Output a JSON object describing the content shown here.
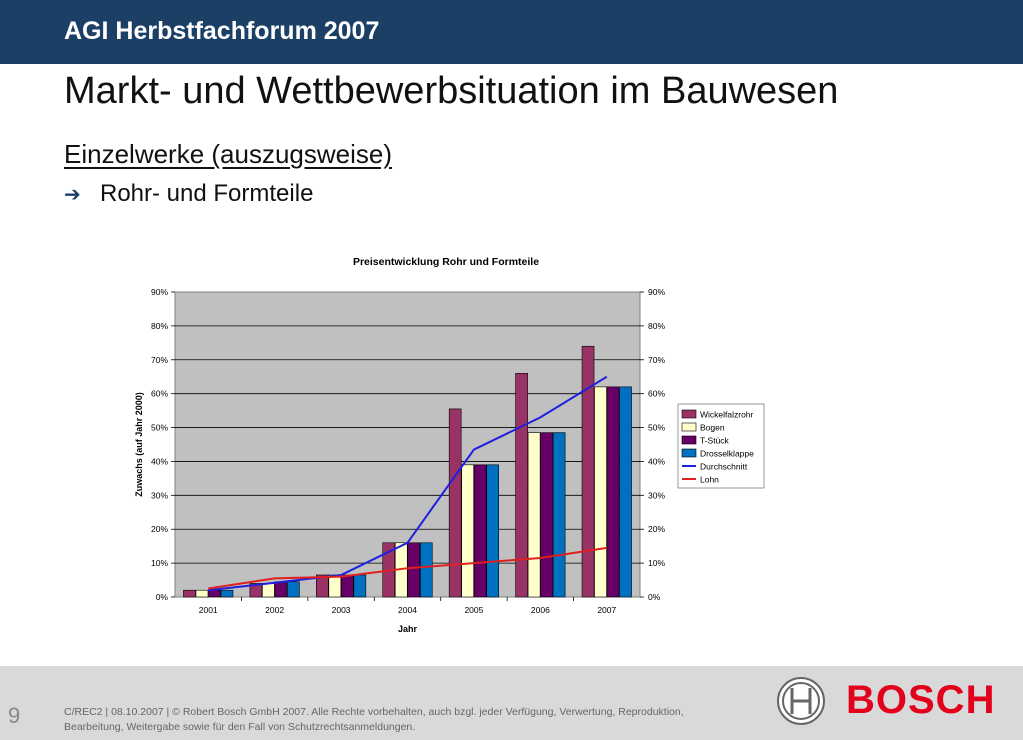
{
  "header": {
    "title": "AGI Herbstfachforum 2007"
  },
  "main": {
    "title": "Markt- und Wettbewerbsituation im Bauwesen",
    "subtitle": "Einzelwerke (auszugsweise)",
    "bullet": "Rohr- und Formteile"
  },
  "chart_data": {
    "type": "bar",
    "title": "Preisentwicklung  Rohr und Formteile",
    "xlabel": "Jahr",
    "ylabel": "Zuwachs (auf Jahr 2000)",
    "ylim": [
      0,
      90
    ],
    "y_ticks": [
      "0%",
      "10%",
      "20%",
      "30%",
      "40%",
      "50%",
      "60%",
      "70%",
      "80%",
      "90%"
    ],
    "y2_ticks": [
      "0%",
      "10%",
      "20%",
      "30%",
      "40%",
      "50%",
      "60%",
      "70%",
      "80%",
      "90%"
    ],
    "categories": [
      "2001",
      "2002",
      "2003",
      "2004",
      "2005",
      "2006",
      "2007"
    ],
    "grid": true,
    "legend_position": "right",
    "series": [
      {
        "name": "Wickelfalzrohr",
        "kind": "bar",
        "color": "#993366",
        "values": [
          2,
          4,
          6.5,
          16,
          55.5,
          66,
          74
        ]
      },
      {
        "name": "Bogen",
        "kind": "bar",
        "color": "#ffffcc",
        "values": [
          2,
          4,
          6.5,
          16,
          39,
          48.5,
          62
        ]
      },
      {
        "name": "T-Stück",
        "kind": "bar",
        "color": "#660066",
        "values": [
          2,
          4.5,
          6.5,
          16,
          39,
          48.5,
          62
        ]
      },
      {
        "name": "Drosselklappe",
        "kind": "bar",
        "color": "#0070c0",
        "values": [
          2,
          4.5,
          6.5,
          16,
          39,
          48.5,
          62
        ]
      },
      {
        "name": "Durchschnitt",
        "kind": "line",
        "color": "#1f1fe0",
        "values": [
          2,
          4.2,
          6.5,
          16,
          43.5,
          53,
          65
        ]
      },
      {
        "name": "Lohn",
        "kind": "line",
        "color": "#e02020",
        "values": [
          2.5,
          5.5,
          6,
          8.5,
          10,
          11.5,
          14.5
        ]
      }
    ]
  },
  "footer": {
    "page_number": "9",
    "line1": "C/REC2 | 08.10.2007 | © Robert Bosch GmbH 2007. Alle Rechte vorbehalten, auch bzgl. jeder Verfügung, Verwertung, Reproduktion,",
    "line2": "Bearbeitung, Weitergabe sowie für den Fall von Schutzrechtsanmeldungen."
  },
  "brand": {
    "name": "BOSCH",
    "color": "#e2001a",
    "logo_icon": "bosch-armature-icon"
  },
  "colors": {
    "header_bg": "#1c3f66",
    "footer_bg": "#d9d9d9",
    "plot_bg": "#c0c0c0"
  }
}
